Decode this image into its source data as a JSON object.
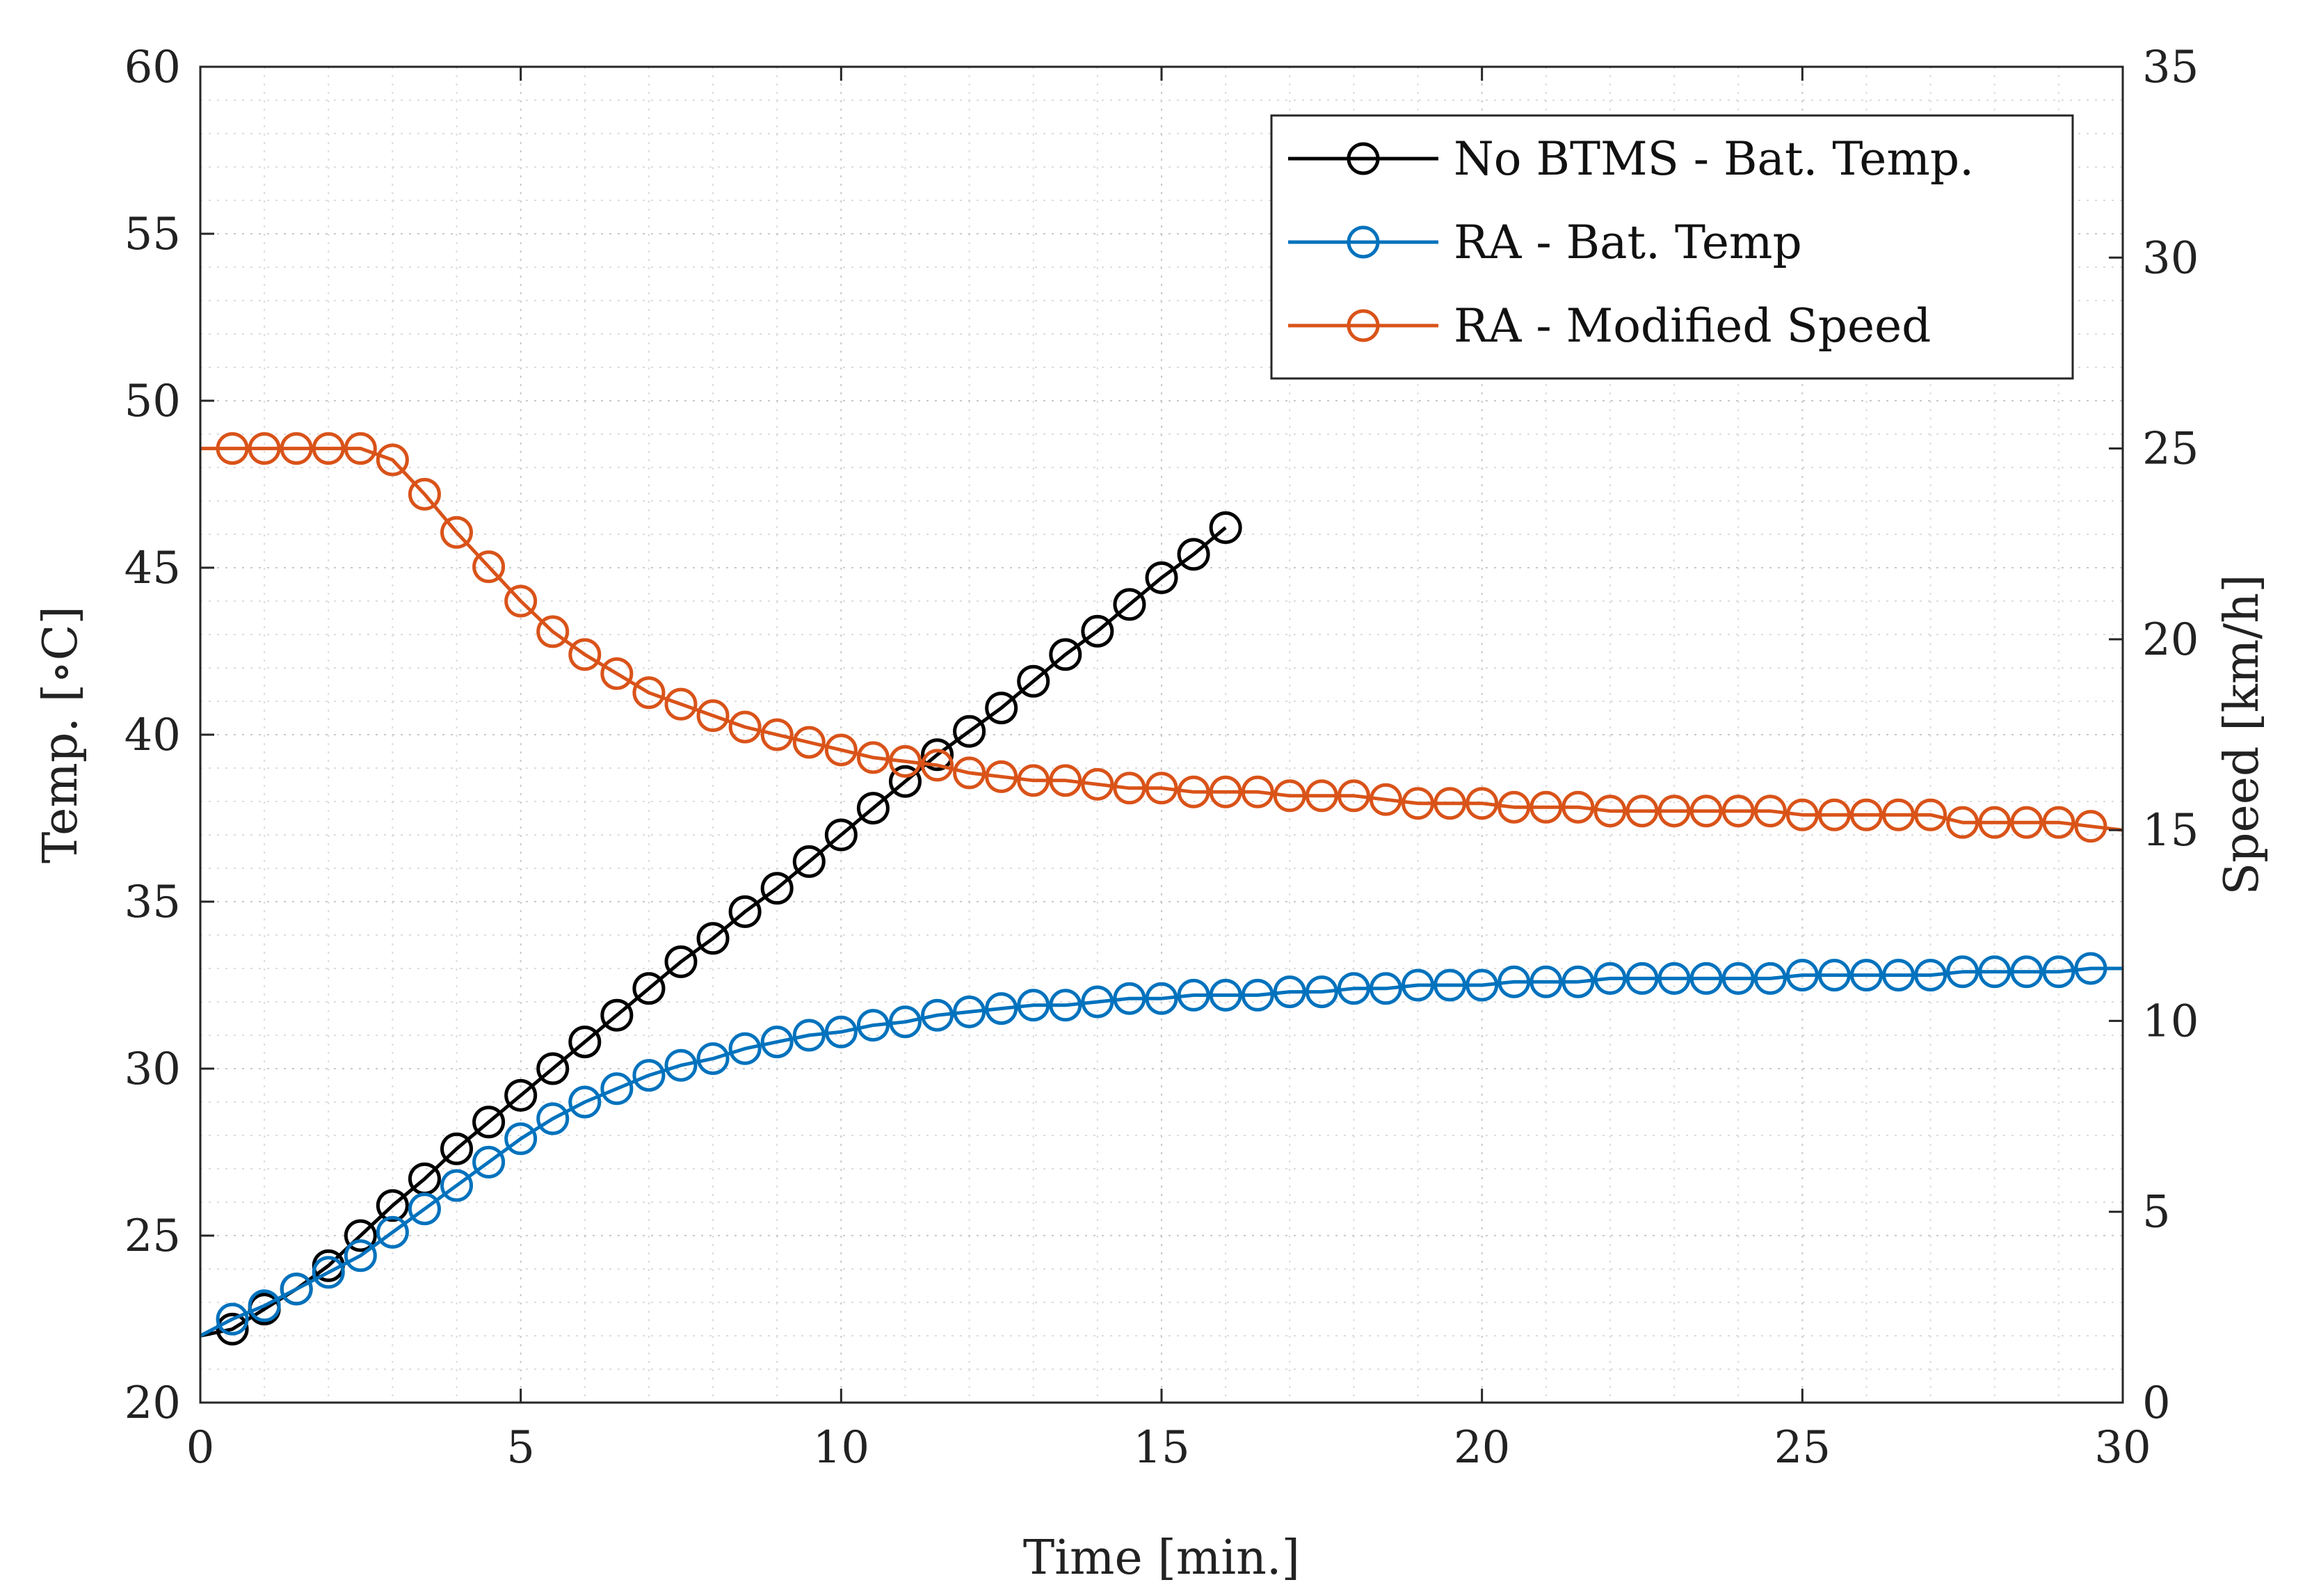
{
  "chart_data": {
    "type": "line",
    "title": "",
    "xlabel": "Time [min.]",
    "ylabel": "Temp. [∘C]",
    "ylabel_right": "Speed [km/h]",
    "xlim": [
      0,
      30
    ],
    "ylim": [
      20,
      60
    ],
    "ylim_right": [
      0,
      35
    ],
    "xticks": [
      "0",
      "5",
      "10",
      "15",
      "20",
      "25",
      "30"
    ],
    "yticks": [
      "20",
      "25",
      "30",
      "35",
      "40",
      "45",
      "50",
      "55",
      "60"
    ],
    "yticks_right": [
      "0",
      "5",
      "10",
      "15",
      "20",
      "25",
      "30",
      "35"
    ],
    "grid": true,
    "legend_position": "top-right",
    "series": [
      {
        "name": "No BTMS - Bat. Temp.",
        "axis": "left",
        "color": "#000000",
        "marker": "circle",
        "x": [
          0.5,
          1,
          1.5,
          2,
          2.5,
          3,
          3.5,
          4,
          4.5,
          5,
          5.5,
          6,
          6.5,
          7,
          7.5,
          8,
          8.5,
          9,
          9.5,
          10,
          10.5,
          11,
          11.5,
          12,
          12.5,
          13,
          13.5,
          14,
          14.5,
          15,
          15.5,
          16
        ],
        "values": [
          22.2,
          22.8,
          23.4,
          24.1,
          25.0,
          25.9,
          26.7,
          27.6,
          28.4,
          29.2,
          30.0,
          30.8,
          31.6,
          32.4,
          33.2,
          33.9,
          34.7,
          35.4,
          36.2,
          37.0,
          37.8,
          38.6,
          39.4,
          40.1,
          40.8,
          41.6,
          42.4,
          43.1,
          43.9,
          44.7,
          45.4,
          46.2
        ],
        "line_start": [
          0,
          22.0
        ],
        "line_end": [
          16,
          46.2
        ]
      },
      {
        "name": "RA - Bat. Temp",
        "axis": "left",
        "color": "#0072BD",
        "marker": "circle",
        "x": [
          0.5,
          1,
          1.5,
          2,
          2.5,
          3,
          3.5,
          4,
          4.5,
          5,
          5.5,
          6,
          6.5,
          7,
          7.5,
          8,
          8.5,
          9,
          9.5,
          10,
          10.5,
          11,
          11.5,
          12,
          12.5,
          13,
          13.5,
          14,
          14.5,
          15,
          15.5,
          16,
          16.5,
          17,
          17.5,
          18,
          18.5,
          19,
          19.5,
          20,
          20.5,
          21,
          21.5,
          22,
          22.5,
          23,
          23.5,
          24,
          24.5,
          25,
          25.5,
          26,
          26.5,
          27,
          27.5,
          28,
          28.5,
          29,
          29.5
        ],
        "values": [
          22.5,
          22.9,
          23.4,
          23.9,
          24.4,
          25.1,
          25.8,
          26.5,
          27.2,
          27.9,
          28.5,
          29.0,
          29.4,
          29.8,
          30.1,
          30.3,
          30.6,
          30.8,
          31.0,
          31.1,
          31.3,
          31.4,
          31.6,
          31.7,
          31.8,
          31.9,
          31.9,
          32.0,
          32.1,
          32.1,
          32.2,
          32.2,
          32.2,
          32.3,
          32.3,
          32.4,
          32.4,
          32.5,
          32.5,
          32.5,
          32.6,
          32.6,
          32.6,
          32.7,
          32.7,
          32.7,
          32.7,
          32.7,
          32.7,
          32.8,
          32.8,
          32.8,
          32.8,
          32.8,
          32.9,
          32.9,
          32.9,
          32.9,
          33.0
        ],
        "line_start": [
          0,
          22.0
        ],
        "line_end": [
          30,
          33.0
        ]
      },
      {
        "name": "RA - Modified Speed",
        "axis": "right",
        "color": "#D95319",
        "marker": "circle",
        "x": [
          0.5,
          1,
          1.5,
          2,
          2.5,
          3,
          3.5,
          4,
          4.5,
          5,
          5.5,
          6,
          6.5,
          7,
          7.5,
          8,
          8.5,
          9,
          9.5,
          10,
          10.5,
          11,
          11.5,
          12,
          12.5,
          13,
          13.5,
          14,
          14.5,
          15,
          15.5,
          16,
          16.5,
          17,
          17.5,
          18,
          18.5,
          19,
          19.5,
          20,
          20.5,
          21,
          21.5,
          22,
          22.5,
          23,
          23.5,
          24,
          24.5,
          25,
          25.5,
          26,
          26.5,
          27,
          27.5,
          28,
          28.5,
          29,
          29.5
        ],
        "values": [
          25.0,
          25.0,
          25.0,
          25.0,
          25.0,
          24.7,
          23.8,
          22.8,
          21.9,
          21.0,
          20.2,
          19.6,
          19.1,
          18.6,
          18.3,
          18.0,
          17.7,
          17.5,
          17.3,
          17.1,
          16.9,
          16.8,
          16.7,
          16.5,
          16.4,
          16.3,
          16.3,
          16.2,
          16.1,
          16.1,
          16.0,
          16.0,
          16.0,
          15.9,
          15.9,
          15.9,
          15.8,
          15.7,
          15.7,
          15.7,
          15.6,
          15.6,
          15.6,
          15.5,
          15.5,
          15.5,
          15.5,
          15.5,
          15.5,
          15.4,
          15.4,
          15.4,
          15.4,
          15.4,
          15.2,
          15.2,
          15.2,
          15.2,
          15.1
        ],
        "line_start": [
          0,
          25.0
        ],
        "line_end": [
          30,
          15.0
        ]
      }
    ]
  }
}
